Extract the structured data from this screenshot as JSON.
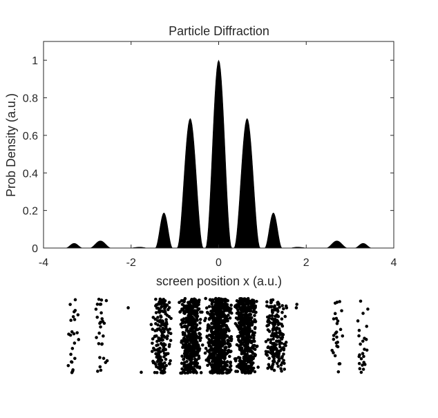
{
  "chart_data": {
    "type": "area",
    "title": "Particle Diffraction",
    "xlabel": "screen position  x  (a.u.)",
    "ylabel": "Prob Density (a.u.)",
    "xlim": [
      -4,
      4
    ],
    "ylim": [
      0,
      1.1
    ],
    "xticks": [
      -4,
      -2,
      0,
      2,
      4
    ],
    "xtick_labels": [
      "-4",
      "-2",
      "0",
      "2",
      "4"
    ],
    "yticks": [
      0,
      0.2,
      0.4,
      0.6,
      0.8,
      1
    ],
    "ytick_labels": [
      "0",
      "0.2",
      "0.4",
      "0.6",
      "0.8",
      "1"
    ],
    "grid": false,
    "fill_color": "#000000",
    "series": [
      {
        "x": [
          -3.5,
          -3.3,
          -3.1,
          -2.95,
          -2.7,
          -2.45,
          -2.05,
          -1.8,
          -1.6,
          -1.45,
          -1.25,
          -1.05,
          -0.95,
          -0.65,
          -0.35,
          -0.3,
          0,
          0.3,
          0.35,
          0.65,
          0.95,
          1.05,
          1.25,
          1.45,
          1.6,
          1.8,
          2.05,
          2.45,
          2.7,
          2.95,
          3.1,
          3.3,
          3.5
        ],
        "y": [
          0,
          0.025,
          0,
          0,
          0.038,
          0,
          0,
          0.005,
          0,
          0,
          0.187,
          0,
          0,
          0.69,
          0,
          0,
          1.0,
          0,
          0,
          0.69,
          0,
          0,
          0.187,
          0,
          0,
          0.005,
          0,
          0,
          0.038,
          0,
          0,
          0.025,
          0
        ]
      }
    ]
  },
  "detector": {
    "dot_color": "#000000",
    "bands": [
      {
        "center": -3.3,
        "width": 0.16,
        "count": 24
      },
      {
        "center": -2.7,
        "width": 0.16,
        "count": 28
      },
      {
        "center": -2.07,
        "width": 0.03,
        "count": 1
      },
      {
        "center": -1.77,
        "width": 0.03,
        "count": 1
      },
      {
        "center": -1.3,
        "width": 0.26,
        "count": 200
      },
      {
        "center": -0.63,
        "width": 0.28,
        "count": 480
      },
      {
        "center": 0.0,
        "width": 0.32,
        "count": 620
      },
      {
        "center": 0.63,
        "width": 0.28,
        "count": 480
      },
      {
        "center": 1.3,
        "width": 0.26,
        "count": 200
      },
      {
        "center": 1.77,
        "width": 0.03,
        "count": 2
      },
      {
        "center": 2.72,
        "width": 0.16,
        "count": 26
      },
      {
        "center": 3.28,
        "width": 0.16,
        "count": 25
      }
    ]
  }
}
